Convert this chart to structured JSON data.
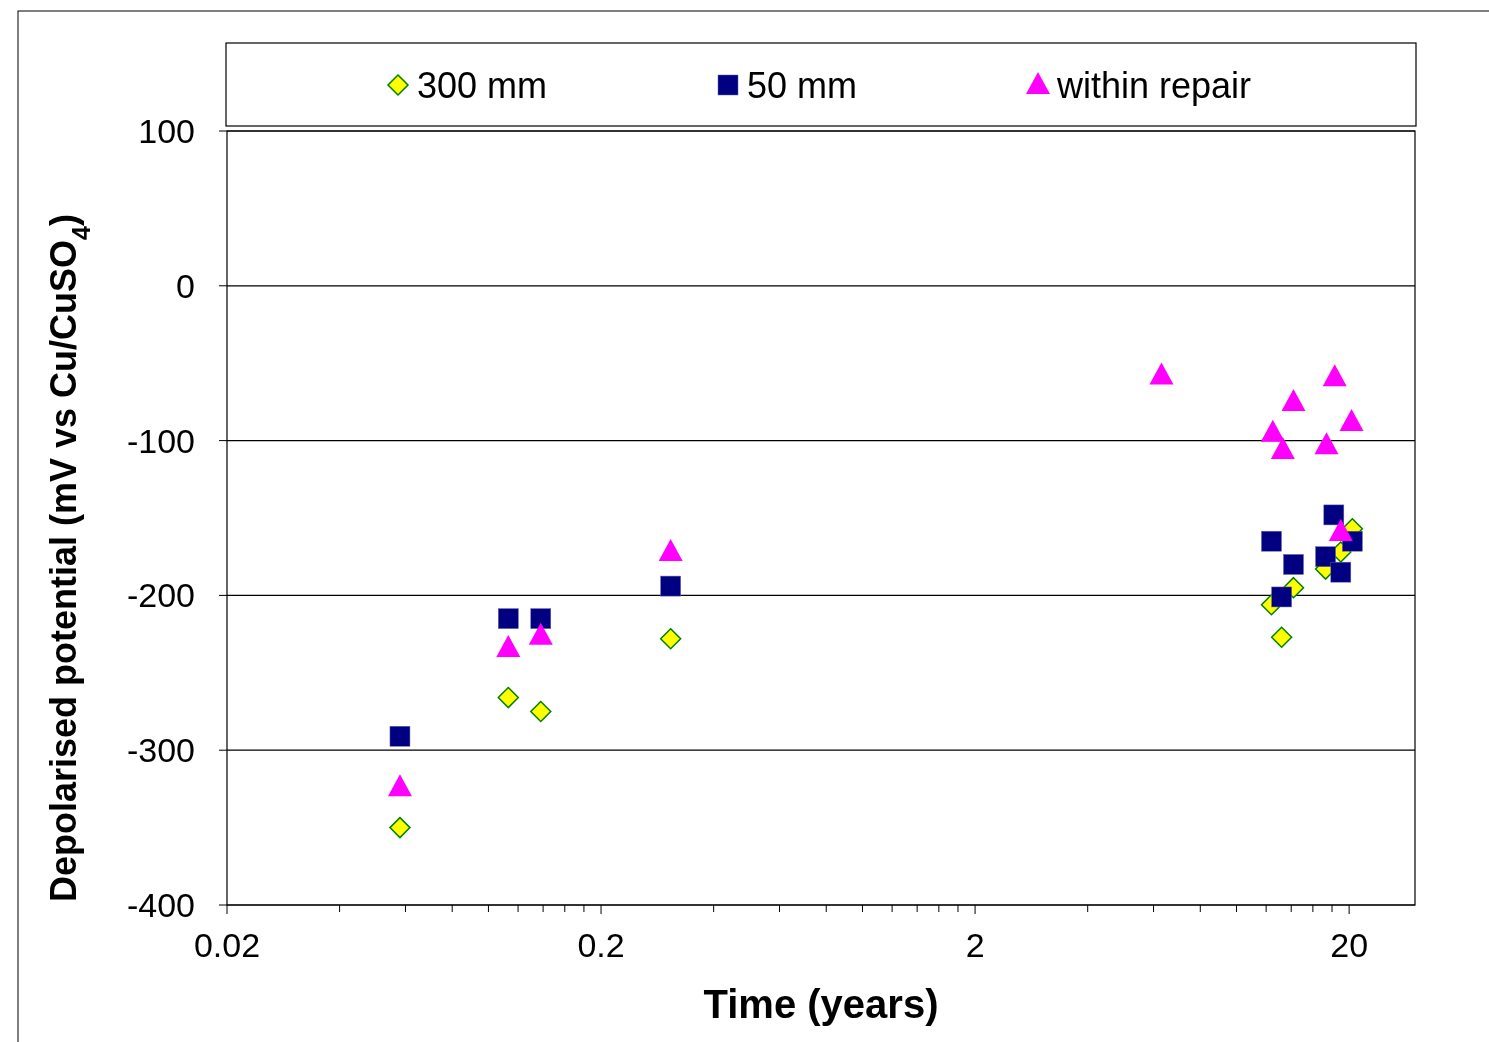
{
  "chart_data": {
    "type": "scatter",
    "xlabel": "Time (years)",
    "ylabel": "Depolarised potential (mV vs Cu/CuSO$_{4}$)",
    "log": "x",
    "xlim": [
      0.02,
      30
    ],
    "ylim": [
      -400,
      100
    ],
    "xticks": [
      0.02,
      {
        "value": 0.04,
        "label": null
      },
      {
        "value": 0.06,
        "label": null
      },
      {
        "value": 0.08,
        "label": null
      },
      {
        "value": 0.1,
        "label": null
      },
      {
        "value": 0.12,
        "label": null
      },
      {
        "value": 0.14,
        "label": null
      },
      {
        "value": 0.16,
        "label": null
      },
      {
        "value": 0.18,
        "label": null
      },
      0.2,
      {
        "value": 0.4,
        "label": null
      },
      {
        "value": 0.6,
        "label": null
      },
      {
        "value": 0.8,
        "label": null
      },
      {
        "value": 1,
        "label": null
      },
      {
        "value": 1.2,
        "label": null
      },
      {
        "value": 1.4,
        "label": null
      },
      {
        "value": 1.6,
        "label": null
      },
      {
        "value": 1.8,
        "label": null
      },
      2,
      {
        "value": 4,
        "label": null
      },
      {
        "value": 6,
        "label": null
      },
      {
        "value": 8,
        "label": null
      },
      {
        "value": 10,
        "label": null
      },
      {
        "value": 12,
        "label": null
      },
      {
        "value": 14,
        "label": null
      },
      {
        "value": 16,
        "label": null
      },
      {
        "value": 18,
        "label": null
      },
      20
    ],
    "yticks": [
      -400,
      -300,
      -200,
      -100,
      0,
      100
    ],
    "grid": "y",
    "legend": "top",
    "series": [
      {
        "name": "300 mm",
        "color": "#ffff00",
        "marker": "diamond",
        "x": [
          0.058,
          0.113,
          0.138,
          0.307,
          12.4,
          13.2,
          14.2,
          17.3,
          19.0,
          20.4
        ],
        "values": [
          -350,
          -266,
          -275,
          -228,
          -206,
          -227,
          -195,
          -183,
          -172,
          -157
        ]
      },
      {
        "name": "50 mm",
        "color": "#000080",
        "marker": "square",
        "x": [
          0.058,
          0.113,
          0.138,
          0.307,
          12.4,
          13.2,
          14.2,
          17.3,
          18.2,
          19.0,
          20.4
        ],
        "values": [
          -291,
          -215,
          -215,
          -194,
          -165,
          -201,
          -180,
          -175,
          -148,
          -185,
          -165
        ]
      },
      {
        "name": "within repair",
        "color": "#ff00ff",
        "marker": "triangle",
        "x": [
          0.058,
          0.113,
          0.138,
          0.307,
          6.3,
          12.5,
          13.3,
          14.2,
          17.4,
          18.3,
          19.0,
          20.3
        ],
        "values": [
          -324,
          -234,
          -226,
          -172,
          -58,
          -95,
          -106,
          -75,
          -103,
          -59,
          -159,
          -88
        ]
      }
    ]
  }
}
